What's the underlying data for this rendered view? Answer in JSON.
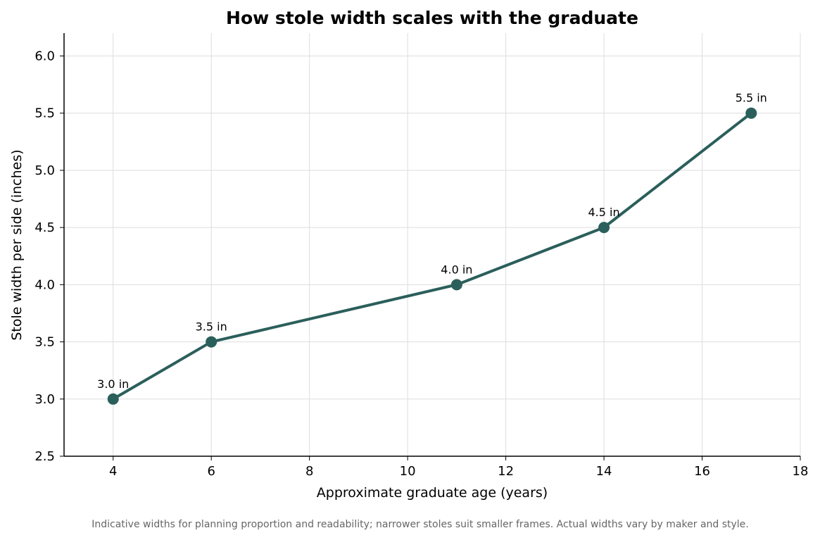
{
  "chart_data": {
    "type": "line",
    "title": "How stole width scales with the graduate",
    "xlabel": "Approximate graduate age (years)",
    "ylabel": "Stole width per side (inches)",
    "footnote": "Indicative widths for planning proportion and readability; narrower stoles suit smaller frames. Actual widths vary by maker and style.",
    "xlim": [
      3,
      18
    ],
    "ylim": [
      2.5,
      6.2
    ],
    "x_ticks": [
      4,
      6,
      8,
      10,
      12,
      14,
      16,
      18
    ],
    "y_ticks": [
      2.5,
      3.0,
      3.5,
      4.0,
      4.5,
      5.0,
      5.5,
      6.0
    ],
    "x_tick_labels": [
      "4",
      "6",
      "8",
      "10",
      "12",
      "14",
      "16",
      "18"
    ],
    "y_tick_labels": [
      "2.5",
      "3.0",
      "3.5",
      "4.0",
      "4.5",
      "5.0",
      "5.5",
      "6.0"
    ],
    "grid": true,
    "series": [
      {
        "color": "#2b5f5b",
        "points": [
          {
            "x": 4,
            "y": 3.0,
            "label": "3.0 in"
          },
          {
            "x": 6,
            "y": 3.5,
            "label": "3.5 in"
          },
          {
            "x": 11,
            "y": 4.0,
            "label": "4.0 in"
          },
          {
            "x": 14,
            "y": 4.5,
            "label": "4.5 in"
          },
          {
            "x": 17,
            "y": 5.5,
            "label": "5.5 in"
          }
        ]
      }
    ]
  }
}
